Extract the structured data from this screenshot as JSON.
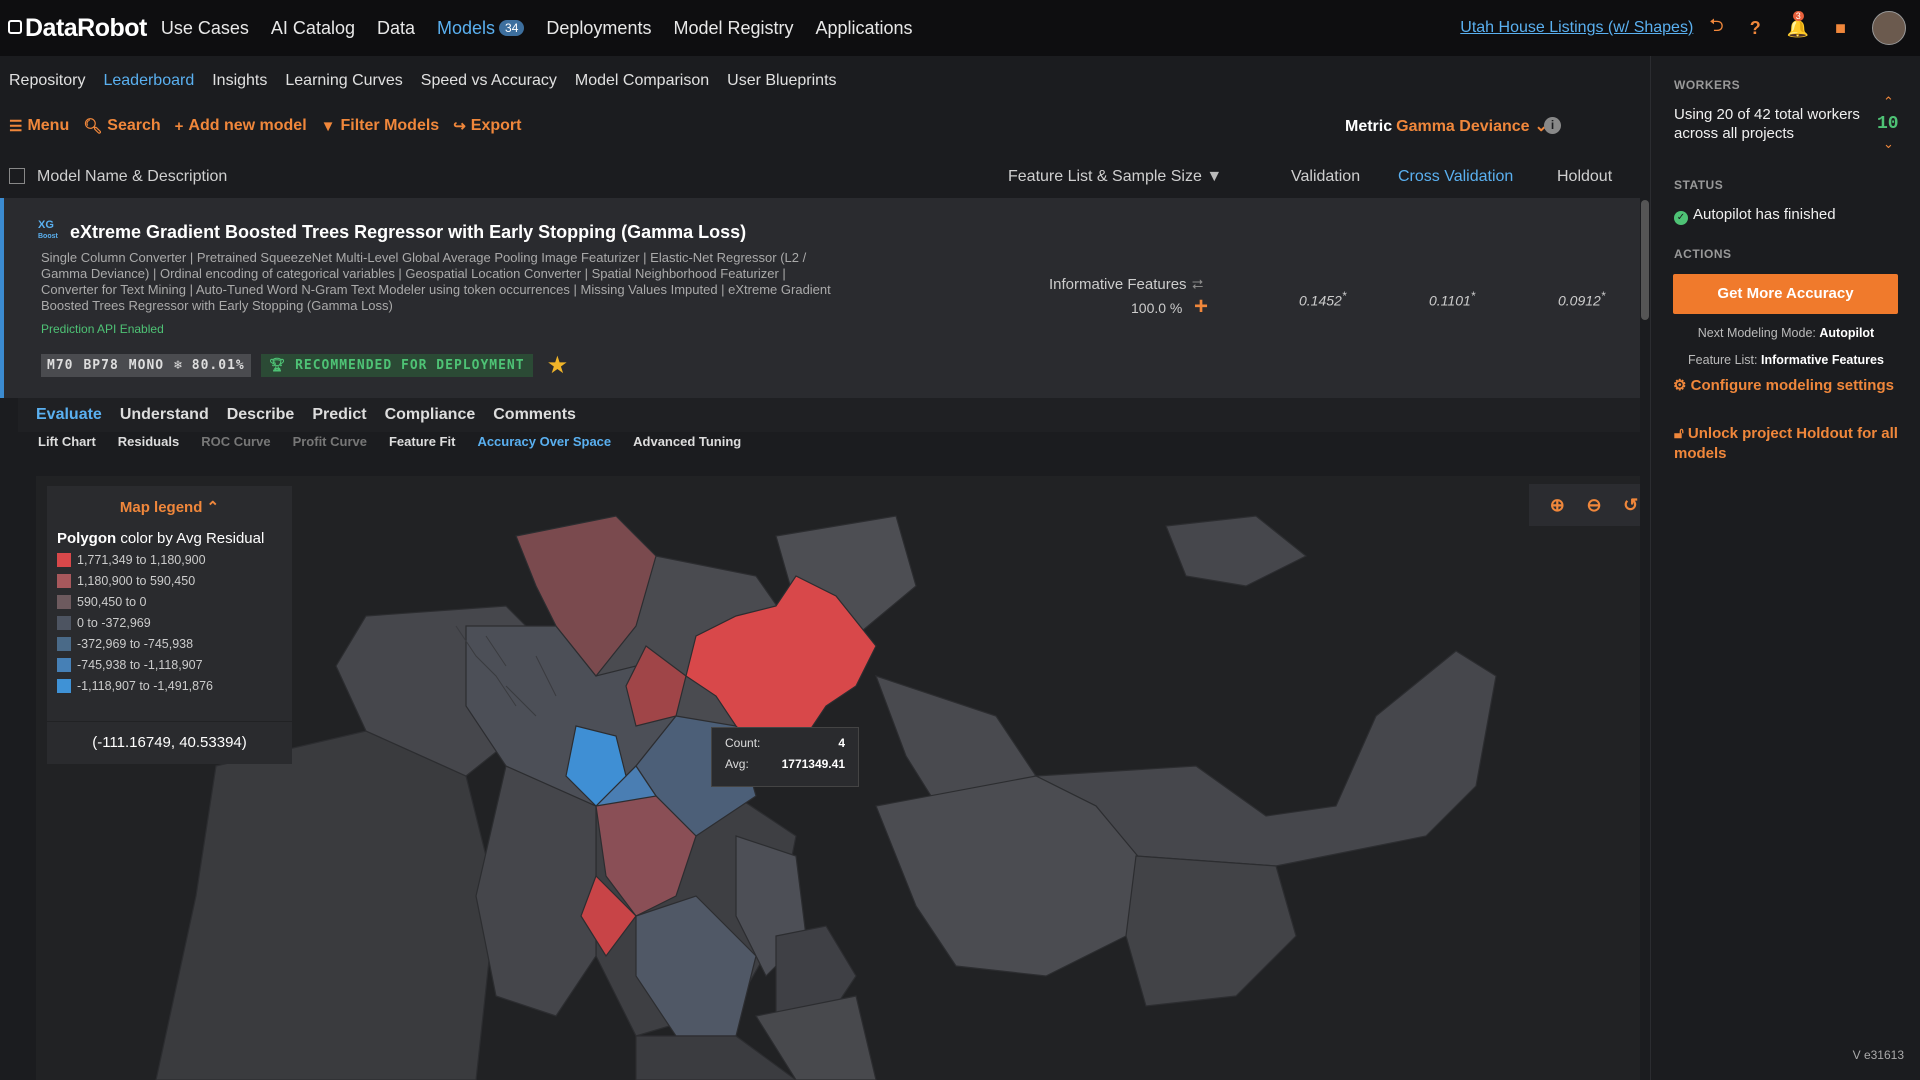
{
  "brand": {
    "name": "DataRobot"
  },
  "nav": {
    "items": [
      {
        "label": "Use Cases"
      },
      {
        "label": "AI Catalog"
      },
      {
        "label": "Data"
      },
      {
        "label": "Models",
        "badge": "34"
      },
      {
        "label": "Deployments"
      },
      {
        "label": "Model Registry"
      },
      {
        "label": "Applications"
      }
    ],
    "project": "Utah House Listings (w/ Shapes)",
    "notification_count": "3"
  },
  "subnav": {
    "items": [
      {
        "label": "Repository"
      },
      {
        "label": "Leaderboard"
      },
      {
        "label": "Insights"
      },
      {
        "label": "Learning Curves"
      },
      {
        "label": "Speed vs Accuracy"
      },
      {
        "label": "Model Comparison"
      },
      {
        "label": "User Blueprints"
      }
    ]
  },
  "toolbar": {
    "menu": "Menu",
    "search": "Search",
    "add": "Add new model",
    "filter": "Filter Models",
    "export": "Export",
    "metric_label": "Metric",
    "metric_value": "Gamma Deviance"
  },
  "columns": {
    "name": "Model Name & Description",
    "feature": "Feature List & Sample Size",
    "validation": "Validation",
    "cross_validation": "Cross Validation",
    "holdout": "Holdout"
  },
  "model": {
    "icon_text": "XG Boost",
    "title": "eXtreme Gradient Boosted Trees Regressor with Early Stopping (Gamma Loss)",
    "description": "Single Column Converter | Pretrained SqueezeNet Multi-Level Global Average Pooling Image Featurizer | Elastic-Net Regressor (L2 / Gamma Deviance) | Ordinal encoding of categorical variables | Geospatial Location Converter | Spatial Neighborhood Featurizer | Converter for Text Mining | Auto-Tuned Word N-Gram Text Modeler using token occurrences | Missing Values Imputed | eXtreme Gradient Boosted Trees Regressor with Early Stopping (Gamma Loss)",
    "api": "Prediction API Enabled",
    "tags": [
      "M70",
      "BP78",
      "MONO",
      "❄ 80.01%"
    ],
    "recommended": "RECOMMENDED FOR DEPLOYMENT",
    "feature_list": "Informative Features",
    "sample_size": "100.0 %",
    "validation": "0.1452",
    "cross_validation": "0.1101",
    "holdout": "0.0912"
  },
  "tabs": [
    "Evaluate",
    "Understand",
    "Describe",
    "Predict",
    "Compliance",
    "Comments"
  ],
  "subtabs": [
    "Lift Chart",
    "Residuals",
    "ROC Curve",
    "Profit Curve",
    "Feature Fit",
    "Accuracy Over Space",
    "Advanced Tuning"
  ],
  "legend": {
    "title": "Map legend",
    "subtitle_bold": "Polygon",
    "subtitle_rest": "color by Avg Residual",
    "entries": [
      {
        "label": "1,771,349 to 1,180,900",
        "color": "#d8484a"
      },
      {
        "label": "1,180,900 to 590,450",
        "color": "#a7585c"
      },
      {
        "label": "590,450 to 0",
        "color": "#6d5a5e"
      },
      {
        "label": "0 to -372,969",
        "color": "#4d5461"
      },
      {
        "label": "-372,969 to -745,938",
        "color": "#4a6a88"
      },
      {
        "label": "-745,938 to -1,118,907",
        "color": "#4680b6"
      },
      {
        "label": "-1,118,907 to -1,491,876",
        "color": "#3f92d6"
      }
    ],
    "coords": "(-111.16749, 40.53394)"
  },
  "tooltip": {
    "count_label": "Count:",
    "count": "4",
    "avg_label": "Avg:",
    "avg": "1771349.41"
  },
  "right_panel": {
    "workers_heading": "WORKERS",
    "workers_text": "Using 20 of 42 total workers across all projects",
    "workers_count": "10",
    "status_heading": "STATUS",
    "status_text": "Autopilot has finished",
    "actions_heading": "ACTIONS",
    "get_more": "Get More Accuracy",
    "next_mode_label": "Next Modeling Mode:",
    "next_mode_value": "Autopilot",
    "feature_list_label": "Feature List:",
    "feature_list_value": "Informative Features",
    "configure": "Configure modeling settings",
    "unlock": "Unlock project Holdout for all models",
    "version": "V e31613"
  }
}
